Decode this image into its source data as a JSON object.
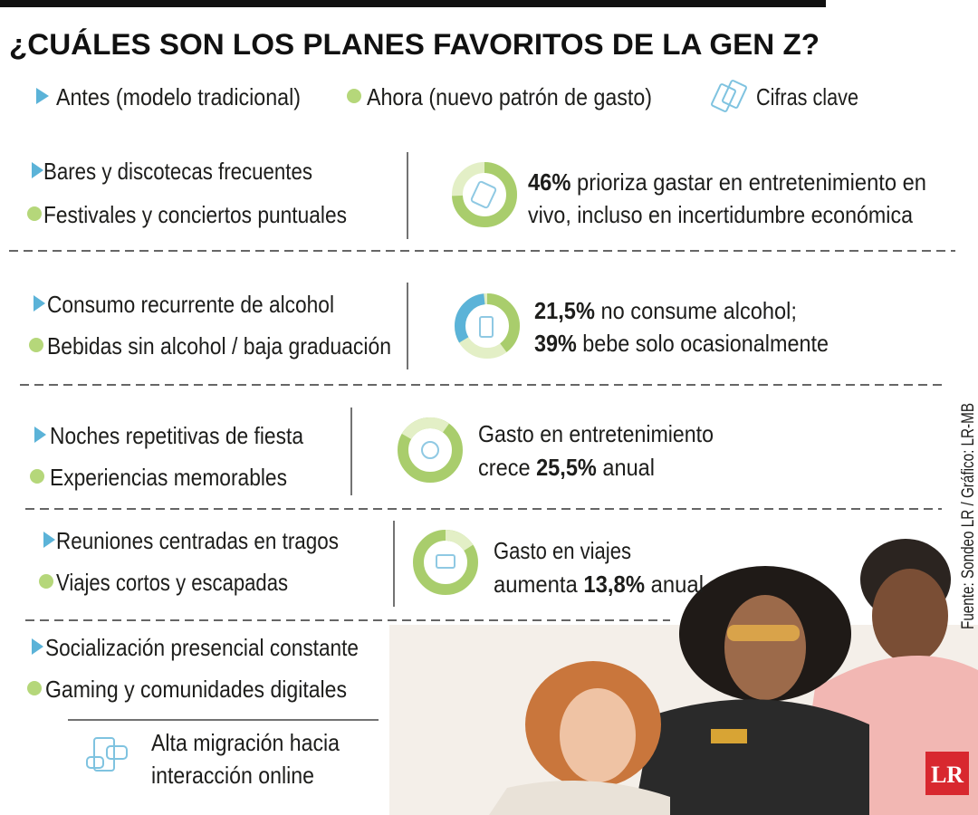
{
  "header": {
    "title": "¿CUÁLES SON LOS PLANES FAVORITOS DE LA GEN Z?"
  },
  "legend": {
    "before": "Antes (modelo tradicional)",
    "after": "Ahora (nuevo patrón de gasto)",
    "key": "Cifras clave"
  },
  "rows": [
    {
      "before": "Bares y discotecas frecuentes",
      "after": "Festivales y conciertos puntuales",
      "stat": [
        [
          {
            "t": "46%",
            "b": true
          },
          {
            "t": " prioriza gastar en entretenimiento en"
          }
        ],
        [
          {
            "t": "vivo, incluso en incertidumbre económica"
          }
        ]
      ]
    },
    {
      "before": "Consumo recurrente de alcohol",
      "after": "Bebidas sin alcohol / baja graduación",
      "stat": [
        [
          {
            "t": "21,5%",
            "b": true
          },
          {
            "t": " no consume alcohol;"
          }
        ],
        [
          {
            "t": "39%",
            "b": true
          },
          {
            "t": " bebe solo ocasionalmente"
          }
        ]
      ]
    },
    {
      "before": "Noches repetitivas de fiesta",
      "after": "Experiencias memorables",
      "stat": [
        [
          {
            "t": "Gasto en entretenimiento"
          }
        ],
        [
          {
            "t": "crece "
          },
          {
            "t": "25,5%",
            "b": true
          },
          {
            "t": " anual"
          }
        ]
      ]
    },
    {
      "before": "Reuniones centradas en tragos",
      "after": "Viajes cortos y escapadas",
      "stat": [
        [
          {
            "t": "Gasto en viajes"
          }
        ],
        [
          {
            "t": "aumenta "
          },
          {
            "t": "13,8%",
            "b": true
          },
          {
            "t": " anual"
          }
        ]
      ]
    },
    {
      "before": "Socialización presencial constante",
      "after": "Gaming y comunidades digitales",
      "note": [
        "Alta migración hacia",
        "interacción online"
      ]
    }
  ],
  "source": "Fuente: Sondeo LR / Gráfico: LR-MB",
  "logo": "LR"
}
